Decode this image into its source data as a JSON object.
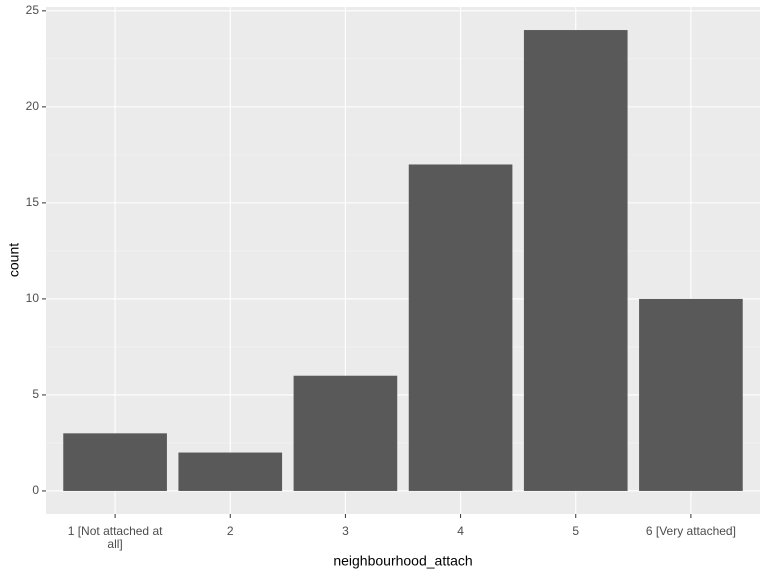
{
  "chart_data": {
    "type": "bar",
    "xlabel": "neighbourhood_attach",
    "ylabel": "count",
    "categories": [
      "1 [Not attached at all]",
      "2",
      "3",
      "4",
      "5",
      "6 [Very attached]"
    ],
    "values": [
      3,
      2,
      6,
      17,
      24,
      10
    ],
    "color": "#595959",
    "ylim": [
      -1.2,
      25.2
    ],
    "yticks": [
      0,
      5,
      10,
      15,
      20,
      25
    ],
    "grid": true
  }
}
